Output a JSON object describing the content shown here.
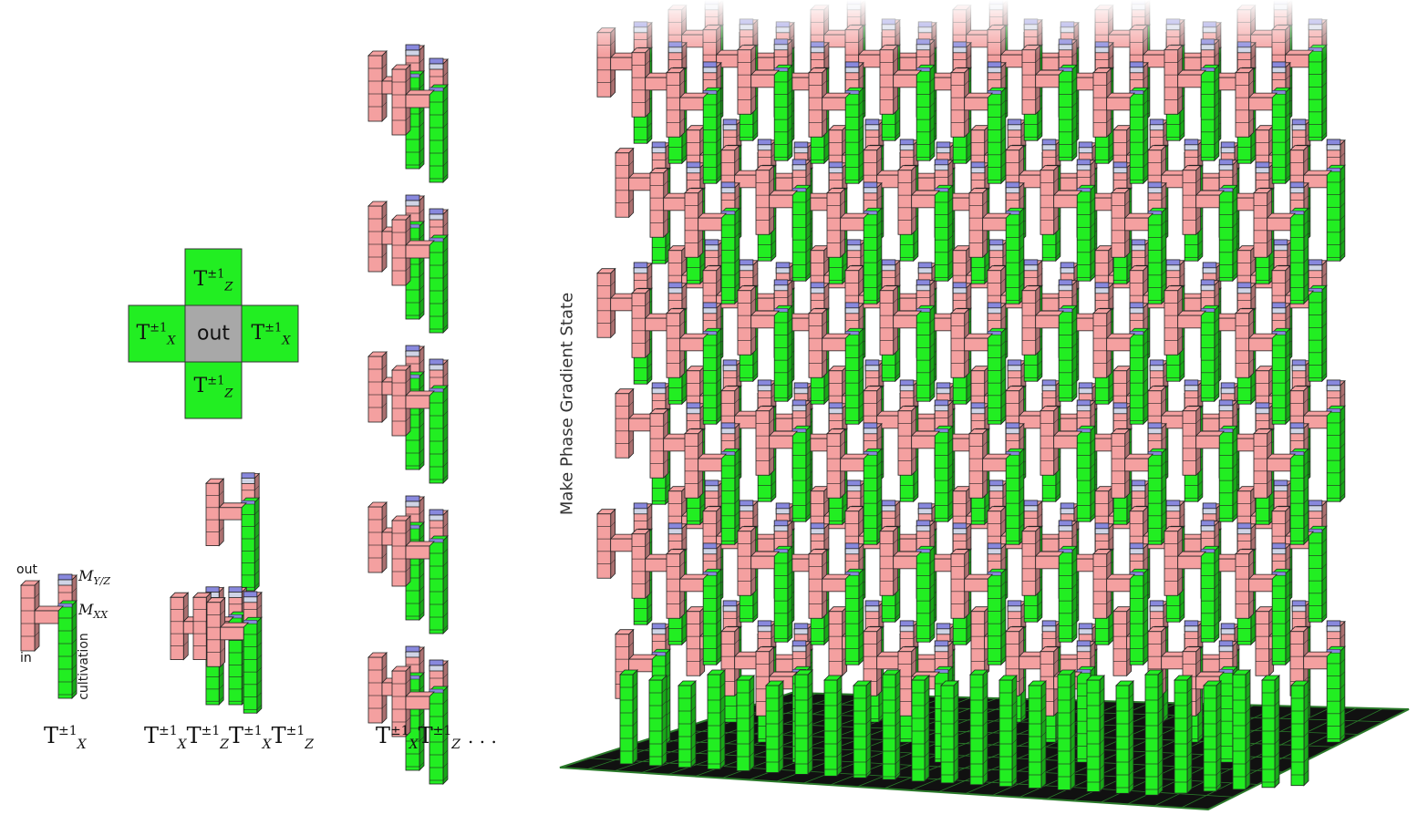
{
  "colors": {
    "cultivation": "#22ee22",
    "cultivation_dark": "#119911",
    "routing": "#f4a0a0",
    "routing_dark": "#b86a6a",
    "measure": "#8888dd",
    "cap": "#cfd4e6",
    "out_cell": "#a8a8a8",
    "floor": "#111111",
    "floor_line": "#2a7a2a"
  },
  "single_unit": {
    "label_out": "out",
    "label_in": "in",
    "label_myz_base": "M",
    "label_myz_sub": "Y/Z",
    "label_mxx_base": "M",
    "label_mxx_sub": "XX",
    "label_cultivation": "cultivation",
    "gate": {
      "base": "T",
      "sup": "±1",
      "sub": "X"
    }
  },
  "cross_layout": {
    "center": "out",
    "top": {
      "base": "T",
      "sup": "±1",
      "sub": "Z"
    },
    "left": {
      "base": "T",
      "sup": "±1",
      "sub": "X"
    },
    "right": {
      "base": "T",
      "sup": "±1",
      "sub": "X"
    },
    "bottom": {
      "base": "T",
      "sup": "±1",
      "sub": "Z"
    }
  },
  "sequence_four": [
    {
      "base": "T",
      "sup": "±1",
      "sub": "X"
    },
    {
      "base": "T",
      "sup": "±1",
      "sub": "Z"
    },
    {
      "base": "T",
      "sup": "±1",
      "sub": "X"
    },
    {
      "base": "T",
      "sup": "±1",
      "sub": "Z"
    }
  ],
  "sequence_long": {
    "gates": [
      {
        "base": "T",
        "sup": "±1",
        "sub": "X"
      },
      {
        "base": "T",
        "sup": "±1",
        "sub": "Z"
      }
    ],
    "ellipsis": ". . ."
  },
  "factory_title": "Make Phase Gradient State"
}
